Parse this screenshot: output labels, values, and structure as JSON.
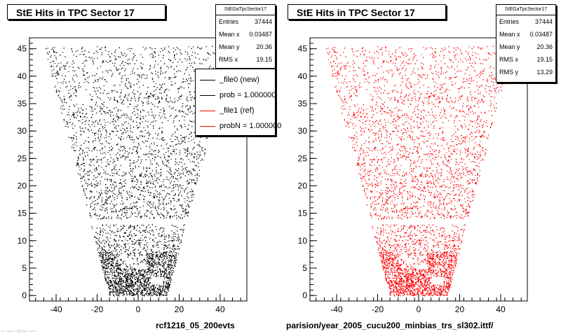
{
  "colors": {
    "new": "#000000",
    "ref": "#ff0000"
  },
  "panels": [
    {
      "title": "StE Hits in TPC Sector 17",
      "stats": {
        "header": "StEGaTpcSector17",
        "rows": [
          {
            "label": "Entries",
            "value": "37444"
          },
          {
            "label": "Mean x",
            "value": "0.03487"
          },
          {
            "label": "Mean y",
            "value": "20.36"
          },
          {
            "label": "RMS x",
            "value": "19.15"
          }
        ]
      },
      "caption": "rcf1216_05_200evts"
    },
    {
      "title": "StE Hits in TPC Sector 17",
      "stats": {
        "header": "StEGaTpcSector17",
        "rows": [
          {
            "label": "Entries",
            "value": "37444"
          },
          {
            "label": "Mean x",
            "value": "0.03487"
          },
          {
            "label": "Mean y",
            "value": "20.36"
          },
          {
            "label": "RMS x",
            "value": "19.15"
          },
          {
            "label": "RMS y",
            "value": "13.29"
          }
        ]
      },
      "caption": "parision/year_2005_cucu200_minbias_trs_sl302.ittf/"
    }
  ],
  "legend": [
    {
      "label": "_file0 (new)",
      "color": "#000000"
    },
    {
      "label": "prob = 1.000000",
      "color": "#000000"
    },
    {
      "label": "_file1 (ref)",
      "color": "#ff0000"
    },
    {
      "label": "probN = 1.000000",
      "color": "#ff0000"
    }
  ],
  "corner_text": "·· ··· · ··:··:·· ····",
  "chart_data": [
    {
      "type": "scatter",
      "title": "StE Hits in TPC Sector 17",
      "xlabel": "",
      "ylabel": "",
      "xlim": [
        -53,
        53
      ],
      "ylim": [
        -1,
        47
      ],
      "x_ticks": [
        -40,
        -20,
        0,
        20,
        40
      ],
      "y_ticks": [
        0,
        5,
        10,
        15,
        20,
        25,
        30,
        35,
        40,
        45
      ],
      "grid": false,
      "series": [
        {
          "name": "_file0 (new)",
          "color": "#000000",
          "region": {
            "y_rows": [
              0,
              45.5
            ],
            "half_width_at_y0": 14,
            "half_width_at_y45": 46,
            "gap_y": [
              13,
              14
            ]
          },
          "density": "higher near y=0-8"
        }
      ],
      "stats": {
        "entries": 37444,
        "mean_x": 0.03487,
        "mean_y": 20.36,
        "rms_x": 19.15
      }
    },
    {
      "type": "scatter",
      "title": "StE Hits in TPC Sector 17",
      "xlabel": "",
      "ylabel": "",
      "xlim": [
        -53,
        53
      ],
      "ylim": [
        -1,
        47
      ],
      "x_ticks": [
        -40,
        -20,
        0,
        20,
        40
      ],
      "y_ticks": [
        0,
        5,
        10,
        15,
        20,
        25,
        30,
        35,
        40,
        45
      ],
      "grid": false,
      "series": [
        {
          "name": "_file1 (ref)",
          "color": "#ff0000",
          "region": {
            "y_rows": [
              0,
              45.5
            ],
            "half_width_at_y0": 14,
            "half_width_at_y45": 46,
            "gap_y": [
              13,
              14
            ]
          },
          "density": "higher near y=0-8"
        }
      ],
      "stats": {
        "entries": 37444,
        "mean_x": 0.03487,
        "mean_y": 20.36,
        "rms_x": 19.15,
        "rms_y": 13.29
      }
    }
  ]
}
